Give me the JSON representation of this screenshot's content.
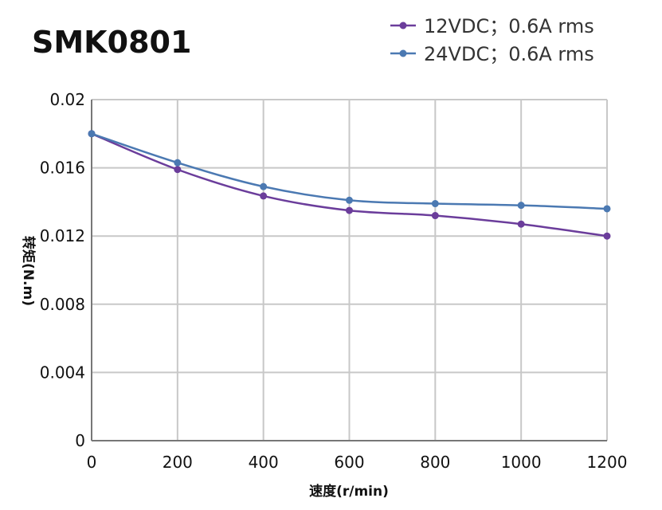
{
  "chart_data": {
    "type": "line",
    "title": "SMK0801",
    "xlabel": "速度(r/min)",
    "ylabel": "转矩(N.m)",
    "xlim": [
      0,
      1200
    ],
    "ylim": [
      0,
      0.02
    ],
    "x_ticks": [
      "0",
      "200",
      "400",
      "600",
      "800",
      "1000",
      "1200"
    ],
    "y_ticks": [
      "0",
      "0.004",
      "0.008",
      "0.012",
      "0.016",
      "0.02"
    ],
    "grid": true,
    "legend_position": "top-right",
    "x": [
      0,
      200,
      400,
      600,
      800,
      1000,
      1200
    ],
    "series": [
      {
        "name": "12VDC；0.6A rms",
        "color": "#6b3d9b",
        "values": [
          0.018,
          0.0159,
          0.01435,
          0.0135,
          0.0132,
          0.0127,
          0.012
        ]
      },
      {
        "name": "24VDC；0.6A rms",
        "color": "#4b79b2",
        "values": [
          0.018,
          0.0163,
          0.0149,
          0.0141,
          0.0139,
          0.0138,
          0.0136
        ]
      }
    ]
  }
}
